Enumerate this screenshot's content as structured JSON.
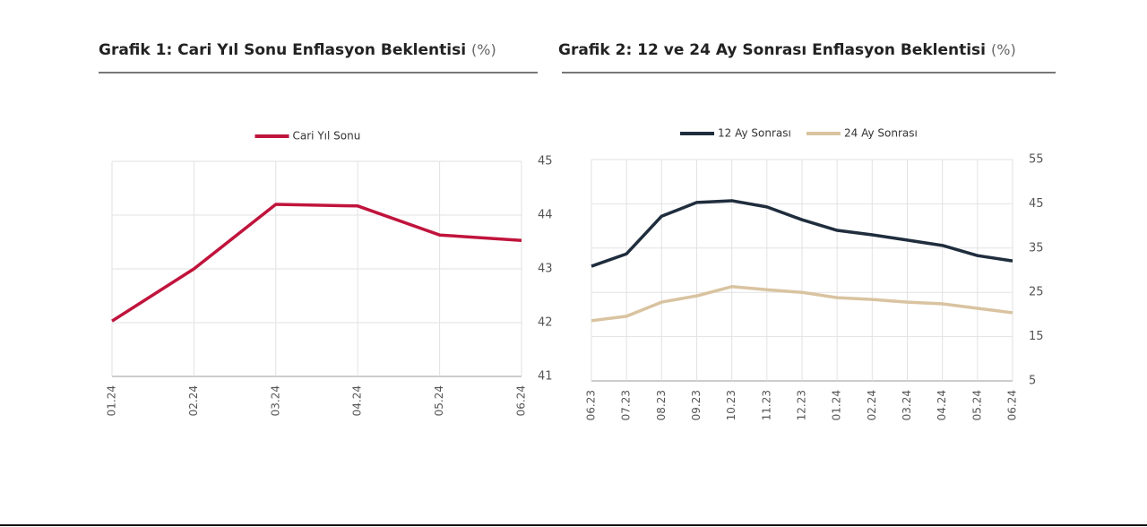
{
  "chart_data": [
    {
      "type": "line",
      "title": "Grafik 1: Cari Yıl Sonu Enflasyon Beklentisi",
      "title_unit": "(%)",
      "categories": [
        "01.24",
        "02.24",
        "03.24",
        "04.24",
        "05.24",
        "06.24"
      ],
      "series": [
        {
          "name": "Cari Yıl Sonu",
          "color": "#c0143c",
          "values": [
            42.03,
            43.0,
            44.2,
            44.17,
            43.63,
            43.53
          ]
        }
      ],
      "ylim": [
        41,
        45
      ],
      "yticks": [
        41,
        42,
        43,
        44,
        45
      ],
      "grid": true,
      "y_axis_side": "right",
      "legend": "top"
    },
    {
      "type": "line",
      "title": "Grafik 2: 12 ve 24 Ay Sonrası Enflasyon Beklentisi",
      "title_unit": "(%)",
      "categories": [
        "06.23",
        "07.23",
        "08.23",
        "09.23",
        "10.23",
        "11.23",
        "12.23",
        "01.24",
        "02.24",
        "03.24",
        "04.24",
        "05.24",
        "06.24"
      ],
      "series": [
        {
          "name": "12 Ay Sonrası",
          "color": "#1f2d3d",
          "values": [
            30.9,
            33.7,
            42.2,
            45.3,
            45.7,
            44.3,
            41.4,
            39.0,
            38.0,
            36.8,
            35.6,
            33.3,
            32.1
          ]
        },
        {
          "name": "24 Ay Sonrası",
          "color": "#d9c3a0",
          "values": [
            18.6,
            19.6,
            22.8,
            24.2,
            26.3,
            25.6,
            25.0,
            23.8,
            23.4,
            22.8,
            22.4,
            21.4,
            20.4
          ]
        }
      ],
      "ylim": [
        5,
        55
      ],
      "yticks": [
        5,
        15,
        25,
        35,
        45,
        55
      ],
      "grid": true,
      "y_axis_side": "right",
      "legend": "top"
    }
  ]
}
